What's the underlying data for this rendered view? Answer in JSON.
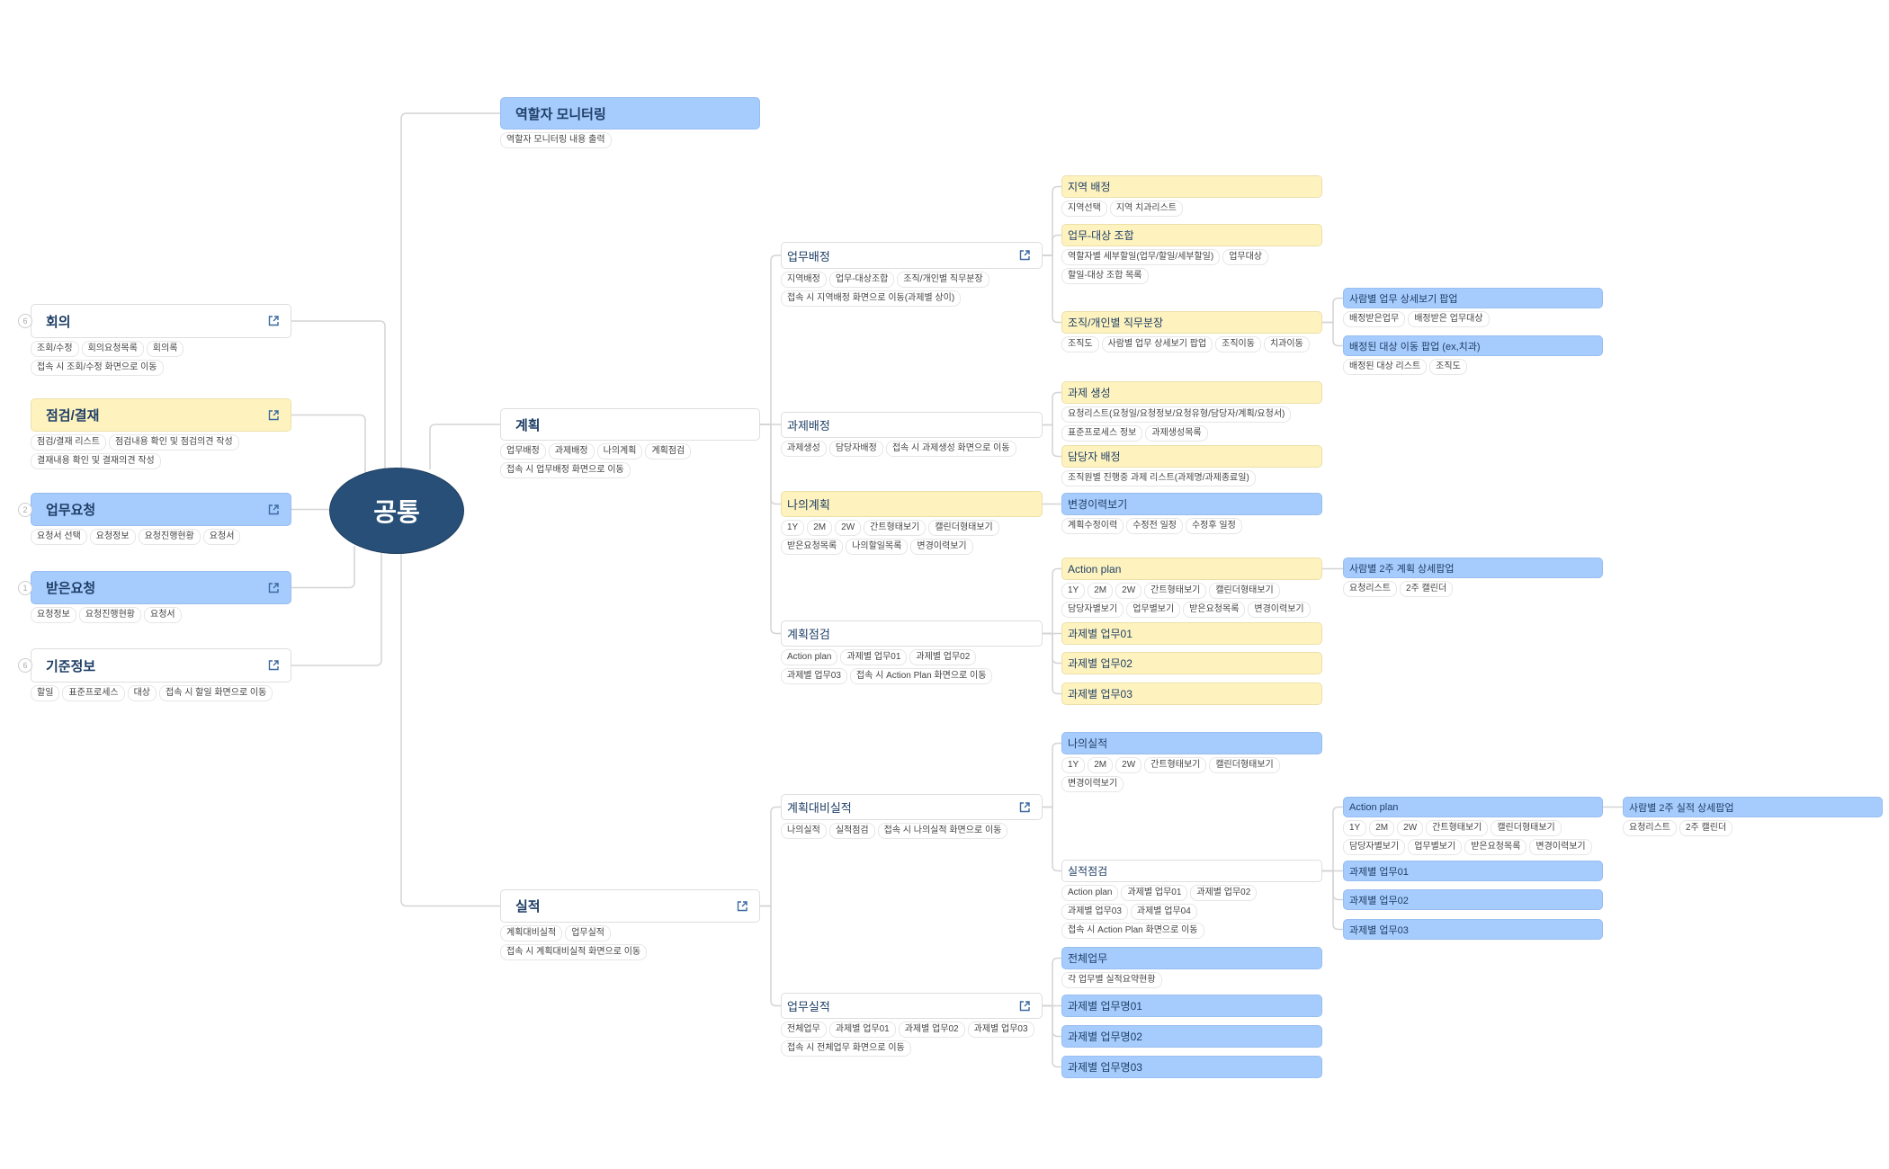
{
  "center": {
    "label": "공통",
    "color": "#274f77"
  },
  "colors": {
    "yellow": "#fef3bf",
    "blue": "#a6cbfd",
    "white": "#ffffff",
    "text": "#1f3f66",
    "line": "#d4d4d4"
  },
  "nodes": [
    {
      "id": "meeting",
      "parent": "center",
      "label": "회의",
      "style": "white",
      "link": true,
      "badge": "6",
      "tags": [
        [
          "조회/수정",
          "회의요청목록",
          "회의록"
        ],
        [
          "접속 시 조회/수정 화면으로 이동"
        ]
      ]
    },
    {
      "id": "approval",
      "parent": "center",
      "label": "점검/결재",
      "style": "yellow",
      "link": true,
      "tags": [
        [
          "점검/결재 리스트",
          "점검내용 확인 및 점검의견 작성"
        ],
        [
          "결재내용 확인 및 결재의견 작성"
        ]
      ]
    },
    {
      "id": "workreq",
      "parent": "center",
      "label": "업무요청",
      "style": "blue",
      "link": true,
      "badge": "2",
      "tags": [
        [
          "요청서 선택",
          "요청정보",
          "요청진행현황",
          "요청서"
        ]
      ]
    },
    {
      "id": "recvreq",
      "parent": "center",
      "label": "받은요청",
      "style": "blue",
      "link": true,
      "badge": "1",
      "tags": [
        [
          "요청정보",
          "요청진행현황",
          "요청서"
        ]
      ]
    },
    {
      "id": "baseinfo",
      "parent": "center",
      "label": "기준정보",
      "style": "white",
      "link": true,
      "badge": "6",
      "tags": [
        [
          "할일",
          "표준프로세스",
          "대상",
          "접속 시 할일 화면으로 이동"
        ]
      ]
    },
    {
      "id": "monitor",
      "parent": "center",
      "label": "역할자 모니터링",
      "style": "blue",
      "tags": [
        [
          "역할자 모니터링 내용 출력"
        ]
      ]
    },
    {
      "id": "plan",
      "parent": "center",
      "label": "계획",
      "style": "white",
      "tags": [
        [
          "업무배정",
          "과제배정",
          "나의계획",
          "계획점검"
        ],
        [
          "접속 시 업무배정 화면으로 이동"
        ]
      ]
    },
    {
      "id": "perf",
      "parent": "center",
      "label": "실적",
      "style": "white",
      "link": true,
      "tags": [
        [
          "계획대비실적",
          "업무실적"
        ],
        [
          "접속 시 계획대비실적 화면으로 이동"
        ]
      ]
    },
    {
      "id": "assign",
      "parent": "plan",
      "label": "업무배정",
      "style": "white",
      "link": true,
      "tags": [
        [
          "지역배정",
          "업무-대상조합",
          "조직/개인별 직무분장"
        ],
        [
          "접속 시 지역배정 화면으로 이동(과제별 상이)"
        ]
      ]
    },
    {
      "id": "taskassign",
      "parent": "plan",
      "label": "과제배정",
      "style": "white",
      "tags": [
        [
          "과제생성",
          "담당자배정",
          "접속 시 과제생성 화면으로 이동"
        ]
      ]
    },
    {
      "id": "myplan",
      "parent": "plan",
      "label": "나의계획",
      "style": "yellow",
      "tags": [
        [
          "1Y",
          "2M",
          "2W",
          "간트형태보기",
          "캘린더형태보기"
        ],
        [
          "받은요청목록",
          "나의할일목록",
          "변경이력보기"
        ]
      ]
    },
    {
      "id": "plancheck",
      "parent": "plan",
      "label": "계획점검",
      "style": "white",
      "tags": [
        [
          "Action plan",
          "과제별 업무01",
          "과제별 업무02"
        ],
        [
          "과제별 업무03",
          "접속 시 Action Plan 화면으로 이동"
        ]
      ]
    },
    {
      "id": "planvsperf",
      "parent": "perf",
      "label": "계획대비실적",
      "style": "white",
      "link": true,
      "tags": [
        [
          "나의실적",
          "실적점검",
          "접속 시 나의실적 화면으로 이동"
        ]
      ]
    },
    {
      "id": "workperf",
      "parent": "perf",
      "label": "업무실적",
      "style": "white",
      "link": true,
      "tags": [
        [
          "전체업무",
          "과제별 업무01",
          "과제별 업무02",
          "과제별 업무03"
        ],
        [
          "접속 시 전체업무 화면으로 이동"
        ]
      ]
    },
    {
      "id": "region",
      "parent": "assign",
      "label": "지역 배정",
      "style": "yellow",
      "tags": [
        [
          "지역선택",
          "지역 치과리스트"
        ]
      ]
    },
    {
      "id": "combo",
      "parent": "assign",
      "label": "업무-대상 조합",
      "style": "yellow",
      "tags": [
        [
          "역할자별 세부할일(업무/할일/세부할일)",
          "업무대상"
        ],
        [
          "할일-대상 조합 목록"
        ]
      ]
    },
    {
      "id": "duty",
      "parent": "assign",
      "label": "조직/개인별 직무분장",
      "style": "yellow",
      "tags": [
        [
          "조직도",
          "사람별 업무 상세보기 팝업",
          "조직이동",
          "치과이동"
        ]
      ]
    },
    {
      "id": "taskcreate",
      "parent": "taskassign",
      "label": "과제 생성",
      "style": "yellow",
      "tags": [
        [
          "요청리스트(요청일/요청정보/요청유형/담당자/계획/요청서)"
        ],
        [
          "표준프로세스 정보",
          "과제생성목록"
        ]
      ]
    },
    {
      "id": "ownerassign",
      "parent": "taskassign",
      "label": "담당자 배정",
      "style": "yellow",
      "tags": [
        [
          "조직원별 진행중 과제 리스트(과제명/과제종료일)"
        ]
      ]
    },
    {
      "id": "history",
      "parent": "myplan",
      "label": "변경이력보기",
      "style": "blue",
      "tags": [
        [
          "계획수정이력",
          "수정전 일정",
          "수정후 일정"
        ]
      ]
    },
    {
      "id": "actionplan",
      "parent": "plancheck",
      "label": "Action plan",
      "style": "yellow",
      "tags": [
        [
          "1Y",
          "2M",
          "2W",
          "간트형태보기",
          "캘린더형태보기"
        ],
        [
          "담당자별보기",
          "업무별보기",
          "받은요청목록",
          "변경이력보기"
        ]
      ]
    },
    {
      "id": "pt1",
      "parent": "plancheck",
      "label": "과제별 업무01",
      "style": "yellow",
      "tags": []
    },
    {
      "id": "pt2",
      "parent": "plancheck",
      "label": "과제별 업무02",
      "style": "yellow",
      "tags": []
    },
    {
      "id": "pt3",
      "parent": "plancheck",
      "label": "과제별 업무03",
      "style": "yellow",
      "tags": []
    },
    {
      "id": "myperf",
      "parent": "planvsperf",
      "label": "나의실적",
      "style": "blue",
      "tags": [
        [
          "1Y",
          "2M",
          "2W",
          "간트형태보기",
          "캘린더형태보기"
        ],
        [
          "변경이력보기"
        ]
      ]
    },
    {
      "id": "perfcheck",
      "parent": "planvsperf",
      "label": "실적점검",
      "style": "white",
      "tags": [
        [
          "Action plan",
          "과제별 업무01",
          "과제별 업무02"
        ],
        [
          "과제별 업무03",
          "과제별 업무04"
        ],
        [
          "접속 시 Action Plan 화면으로 이동"
        ]
      ]
    },
    {
      "id": "allwork",
      "parent": "workperf",
      "label": "전체업무",
      "style": "blue",
      "tags": [
        [
          "각 업무별 실적요약현황"
        ]
      ]
    },
    {
      "id": "wn1",
      "parent": "workperf",
      "label": "과제별 업무명01",
      "style": "blue",
      "tags": []
    },
    {
      "id": "wn2",
      "parent": "workperf",
      "label": "과제별 업무명02",
      "style": "blue",
      "tags": []
    },
    {
      "id": "wn3",
      "parent": "workperf",
      "label": "과제별 업무명03",
      "style": "blue",
      "tags": []
    },
    {
      "id": "personpopup",
      "parent": "duty",
      "label": "사람별 업무 상세보기 팝업",
      "style": "blue",
      "tags": [
        [
          "배정받은업무",
          "배정받은 업무대상"
        ]
      ]
    },
    {
      "id": "movepopup",
      "parent": "duty",
      "label": "배정된 대상 이동 팝업 (ex,치과)",
      "style": "blue",
      "tags": [
        [
          "배정된 대상 리스트",
          "조직도"
        ]
      ]
    },
    {
      "id": "plan2w",
      "parent": "actionplan",
      "label": "사람별 2주 계획 상세팝업",
      "style": "blue",
      "tags": [
        [
          "요청리스트",
          "2주 캘린더"
        ]
      ]
    },
    {
      "id": "perfap",
      "parent": "perfcheck",
      "label": "Action plan",
      "style": "blue",
      "tags": [
        [
          "1Y",
          "2M",
          "2W",
          "간트형태보기",
          "캘린더형태보기"
        ],
        [
          "담당자별보기",
          "업무별보기",
          "받은요청목록",
          "변경이력보기"
        ]
      ]
    },
    {
      "id": "ft1",
      "parent": "perfcheck",
      "label": "과제별 업무01",
      "style": "blue",
      "tags": []
    },
    {
      "id": "ft2",
      "parent": "perfcheck",
      "label": "과제별 업무02",
      "style": "blue",
      "tags": []
    },
    {
      "id": "ft3",
      "parent": "perfcheck",
      "label": "과제별 업무03",
      "style": "blue",
      "tags": []
    },
    {
      "id": "perf2w",
      "parent": "perfap",
      "label": "사람별 2주 실적 상세팝업",
      "style": "blue",
      "tags": [
        [
          "요청리스트",
          "2주 캘린더"
        ]
      ]
    }
  ]
}
